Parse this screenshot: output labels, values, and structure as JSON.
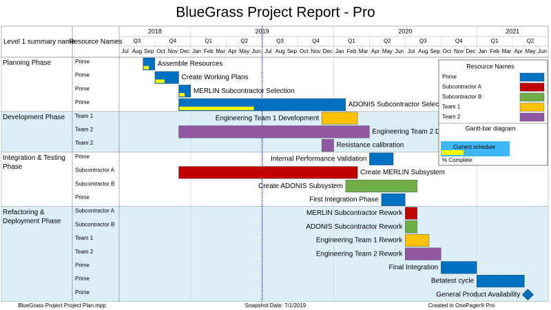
{
  "chart_data": {
    "type": "gantt",
    "title": "BlueGrass Project Report - Pro",
    "columns": [
      "Level 1 summary name",
      "Resource Names"
    ],
    "xlim": [
      "2018-07",
      "2021-06"
    ],
    "years": [
      "2018",
      "2019",
      "2020",
      "2021"
    ],
    "quarters": [
      "Q3",
      "Q4",
      "Q1",
      "Q2",
      "Q3",
      "Q4",
      "Q1",
      "Q2",
      "Q3",
      "Q4",
      "Q1",
      "Q2"
    ],
    "months": [
      "Jul",
      "Aug",
      "Sep",
      "Oct",
      "Nov",
      "Dec",
      "Jan",
      "Feb",
      "Mar",
      "Apr",
      "May",
      "Jun",
      "Jul",
      "Aug",
      "Sep",
      "Oct",
      "Nov",
      "Dec",
      "Jan",
      "Feb",
      "Mar",
      "Apr",
      "May",
      "Jun",
      "Jul",
      "Aug",
      "Sep",
      "Oct",
      "Nov",
      "Dec",
      "Jan",
      "Feb",
      "Mar",
      "Apr",
      "May",
      "Jun"
    ],
    "resources": [
      {
        "name": "Prime",
        "color": "#0070c0"
      },
      {
        "name": "Subcontractor A",
        "color": "#c00000"
      },
      {
        "name": "Subcontractor B",
        "color": "#70ad47"
      },
      {
        "name": "Team 1",
        "color": "#ffc000"
      },
      {
        "name": "Team 2",
        "color": "#9157a2"
      }
    ],
    "groups": [
      {
        "name": "Planning Phase",
        "shaded": false,
        "tasks": [
          {
            "resource": "Prime",
            "name": "Assemble Resources",
            "start": "2018-09",
            "end": "2018-09",
            "percent_complete": 50,
            "label_side": "right"
          },
          {
            "resource": "Prime",
            "name": "Create Working Plans",
            "start": "2018-10",
            "end": "2018-11",
            "percent_complete": 40,
            "label_side": "right"
          },
          {
            "resource": "Prime",
            "name": "MERLIN Subcontractor Selection",
            "start": "2018-12",
            "end": "2018-12",
            "percent_complete": 50,
            "label_side": "right"
          },
          {
            "resource": "Prime",
            "name": "ADONIS Subcontractor Selection",
            "start": "2018-12",
            "end": "2020-01",
            "percent_complete": 45,
            "label_side": "right"
          }
        ]
      },
      {
        "name": "Development Phase",
        "shaded": true,
        "tasks": [
          {
            "resource": "Team 1",
            "name": "Engineering Team 1 Development",
            "start": "2019-12",
            "end": "2020-02",
            "label_side": "left"
          },
          {
            "resource": "Team 2",
            "name": "Engineering Team 2 Development",
            "start": "2018-12",
            "end": "2020-03",
            "label_side": "right"
          },
          {
            "resource": "Team 2",
            "name": "Resistance calibration",
            "start": "2019-12",
            "end": "2019-12",
            "label_side": "right"
          }
        ]
      },
      {
        "name": "Integration & Testing Phase",
        "shaded": false,
        "tasks": [
          {
            "resource": "Prime",
            "name": "Internal Performance Validation",
            "start": "2020-04",
            "end": "2020-05",
            "label_side": "left"
          },
          {
            "resource": "Subcontractor A",
            "name": "Create MERLIN Subsystem",
            "start": "2018-12",
            "end": "2020-02",
            "label_side": "right"
          },
          {
            "resource": "Subcontractor B",
            "name": "Create ADONIS Subsystem",
            "start": "2020-02",
            "end": "2020-07",
            "label_side": "left"
          },
          {
            "resource": "Prime",
            "name": "First Integration Phase",
            "start": "2020-05",
            "end": "2020-06",
            "label_side": "left"
          }
        ]
      },
      {
        "name": "Refactoring & Deployment Phase",
        "shaded": true,
        "tasks": [
          {
            "resource": "Subcontractor A",
            "name": "MERLIN Subcontractor Rework",
            "start": "2020-07",
            "end": "2020-07",
            "label_side": "left"
          },
          {
            "resource": "Subcontractor B",
            "name": "ADONIS Subcontractor Rework",
            "start": "2020-07",
            "end": "2020-07",
            "label_side": "left"
          },
          {
            "resource": "Team 1",
            "name": "Engineering Team 1 Rework",
            "start": "2020-07",
            "end": "2020-08",
            "label_side": "left"
          },
          {
            "resource": "Team 2",
            "name": "Engineering Team 2 Rework",
            "start": "2020-07",
            "end": "2020-09",
            "label_side": "left"
          },
          {
            "resource": "Prime",
            "name": "Final Integration",
            "start": "2020-10",
            "end": "2020-12",
            "label_side": "left"
          },
          {
            "resource": "Prime",
            "name": "Betatest cycle",
            "start": "2021-01",
            "end": "2021-04",
            "label_side": "left"
          },
          {
            "resource": "Prime",
            "name": "General Product Availability",
            "milestone": "2021-05",
            "label_side": "left"
          }
        ]
      }
    ],
    "legend": {
      "title": "Resource Names",
      "diagram_title": "Gantt-bar diagram",
      "schedule_label": "Current schedule",
      "complete_label": "% Complete",
      "complete_color": "#ffff00",
      "schedule_color": "#3fb7f5"
    },
    "footer": [
      "BlueGrass Project Project Plan.mpp",
      "Snapshot Date: 7/1/2019",
      "Created in OnePager® Pro"
    ],
    "snapshot_color": "#1a1aff"
  }
}
